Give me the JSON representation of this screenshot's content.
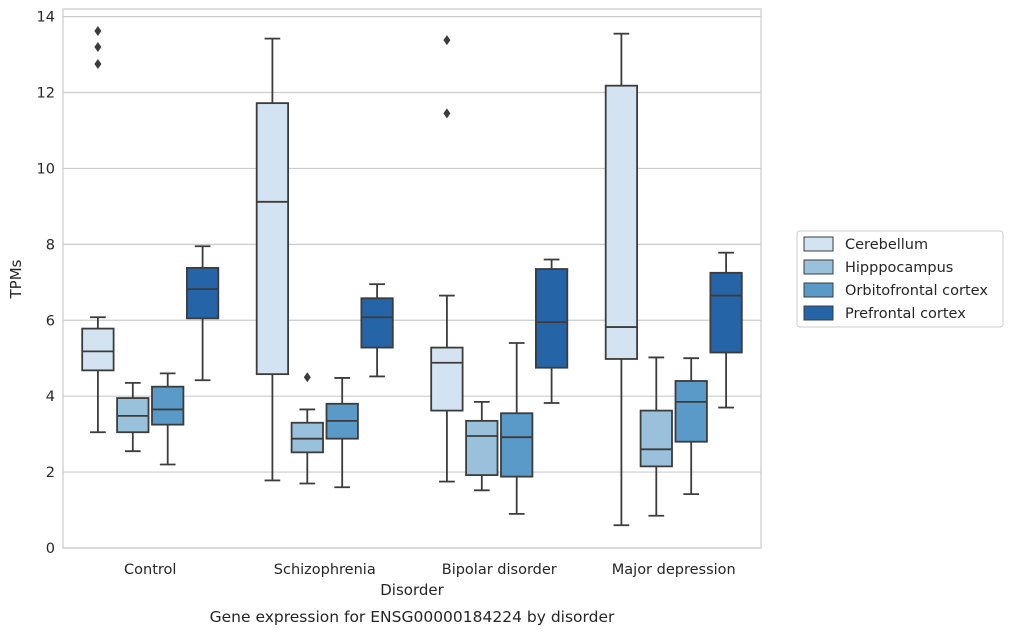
{
  "caption": "Gene expression for ENSG00000184224 by disorder",
  "chart_data": {
    "type": "box",
    "xlabel": "Disorder",
    "ylabel": "TPMs",
    "ylim": [
      0,
      14.2
    ],
    "yticks": [
      0,
      2,
      4,
      6,
      8,
      10,
      12,
      14
    ],
    "grid": "horizontal",
    "legend_position": "right",
    "categories": [
      "Control",
      "Schizophrenia",
      "Bipolar disorder",
      "Major depression"
    ],
    "series": [
      {
        "name": "Cerebellum",
        "color": "#d4e3f2",
        "boxes": [
          {
            "whislo": 3.05,
            "q1": 4.68,
            "med": 5.18,
            "q3": 5.78,
            "whishi": 6.08,
            "fliers": [
              12.75,
              13.2,
              13.62
            ]
          },
          {
            "whislo": 1.78,
            "q1": 4.58,
            "med": 9.12,
            "q3": 11.72,
            "whishi": 13.42,
            "fliers": []
          },
          {
            "whislo": 1.75,
            "q1": 3.62,
            "med": 4.88,
            "q3": 5.28,
            "whishi": 6.65,
            "fliers": [
              11.45,
              13.38
            ]
          },
          {
            "whislo": 0.6,
            "q1": 4.98,
            "med": 5.82,
            "q3": 12.18,
            "whishi": 13.55,
            "fliers": []
          }
        ]
      },
      {
        "name": "Hipppocampus",
        "color": "#9ac1dc",
        "boxes": [
          {
            "whislo": 2.55,
            "q1": 3.05,
            "med": 3.48,
            "q3": 3.95,
            "whishi": 4.35,
            "fliers": []
          },
          {
            "whislo": 1.7,
            "q1": 2.52,
            "med": 2.88,
            "q3": 3.3,
            "whishi": 3.65,
            "fliers": [
              4.5
            ]
          },
          {
            "whislo": 1.52,
            "q1": 1.92,
            "med": 2.95,
            "q3": 3.35,
            "whishi": 3.85,
            "fliers": []
          },
          {
            "whislo": 0.85,
            "q1": 2.15,
            "med": 2.6,
            "q3": 3.62,
            "whishi": 5.02,
            "fliers": []
          }
        ]
      },
      {
        "name": "Orbitofrontal cortex",
        "color": "#5a9ac8",
        "boxes": [
          {
            "whislo": 2.2,
            "q1": 3.25,
            "med": 3.65,
            "q3": 4.25,
            "whishi": 4.6,
            "fliers": []
          },
          {
            "whislo": 1.6,
            "q1": 2.88,
            "med": 3.35,
            "q3": 3.8,
            "whishi": 4.48,
            "fliers": []
          },
          {
            "whislo": 0.9,
            "q1": 1.88,
            "med": 2.92,
            "q3": 3.55,
            "whishi": 5.4,
            "fliers": []
          },
          {
            "whislo": 1.42,
            "q1": 2.8,
            "med": 3.85,
            "q3": 4.4,
            "whishi": 5.0,
            "fliers": []
          }
        ]
      },
      {
        "name": "Prefrontal cortex",
        "color": "#2564a6",
        "boxes": [
          {
            "whislo": 4.42,
            "q1": 6.05,
            "med": 6.82,
            "q3": 7.38,
            "whishi": 7.95,
            "fliers": []
          },
          {
            "whislo": 4.52,
            "q1": 5.28,
            "med": 6.08,
            "q3": 6.58,
            "whishi": 6.95,
            "fliers": []
          },
          {
            "whislo": 3.82,
            "q1": 4.75,
            "med": 5.95,
            "q3": 7.35,
            "whishi": 7.6,
            "fliers": []
          },
          {
            "whislo": 3.7,
            "q1": 5.15,
            "med": 6.65,
            "q3": 7.25,
            "whishi": 7.78,
            "fliers": []
          }
        ]
      }
    ]
  }
}
